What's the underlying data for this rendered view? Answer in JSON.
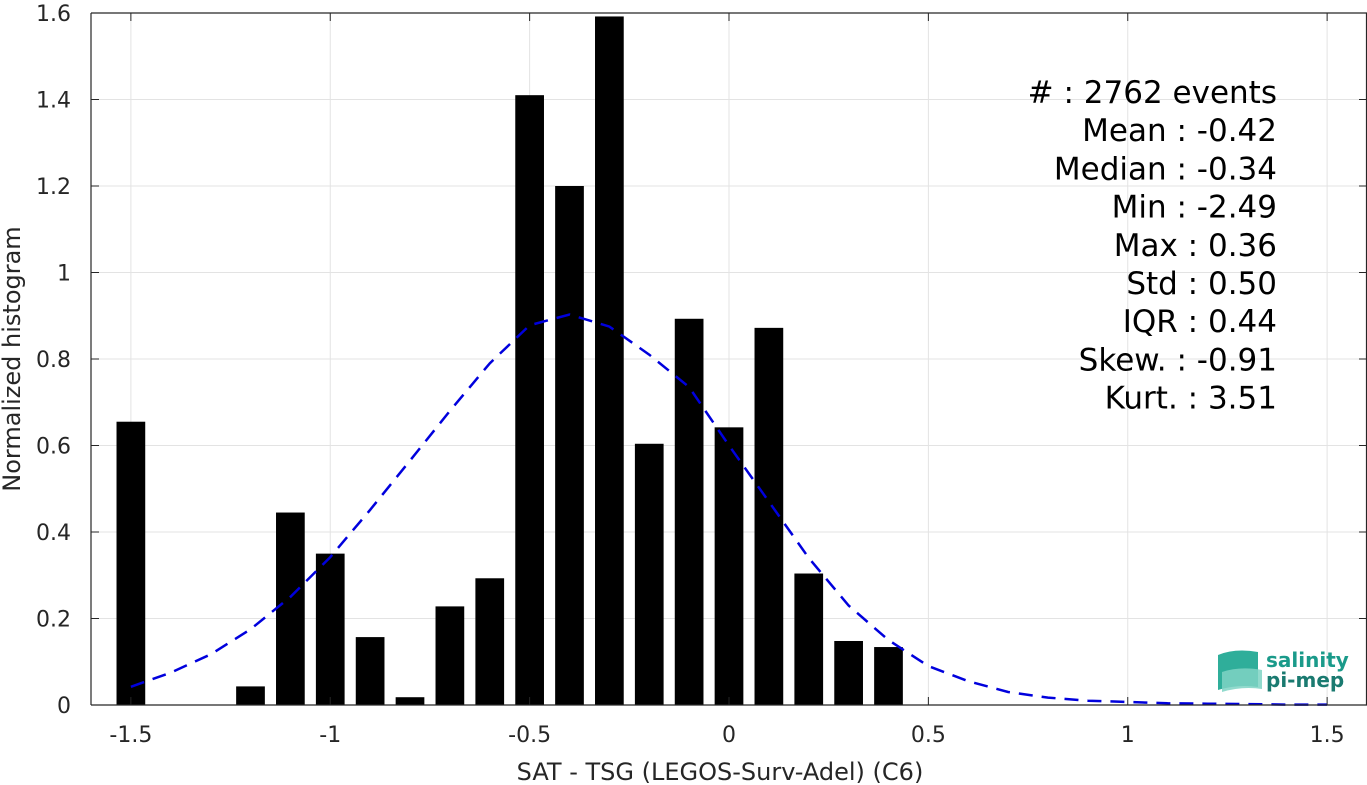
{
  "chart_data": {
    "type": "bar",
    "xlabel": "SAT - TSG (LEGOS-Surv-Adel) (C6)",
    "ylabel": "Normalized histogram",
    "xlim": [
      -1.6,
      1.6
    ],
    "ylim": [
      0,
      1.6
    ],
    "xticks": [
      -1.5,
      -1,
      -0.5,
      0,
      0.5,
      1,
      1.5
    ],
    "xtick_labels": [
      "-1.5",
      "-1",
      "-0.5",
      "0",
      "0.5",
      "1",
      "1.5"
    ],
    "yticks": [
      0,
      0.2,
      0.4,
      0.6,
      0.8,
      1,
      1.2,
      1.4,
      1.6
    ],
    "ytick_labels": [
      "0",
      "0.2",
      "0.4",
      "0.6",
      "0.8",
      "1",
      "1.2",
      "1.4",
      "1.6"
    ],
    "grid": true,
    "bar_color": "#000000",
    "bin_width": 0.1,
    "bins": [
      {
        "x": -1.5,
        "value": 0.655
      },
      {
        "x": -1.4,
        "value": 0
      },
      {
        "x": -1.3,
        "value": 0
      },
      {
        "x": -1.2,
        "value": 0.043
      },
      {
        "x": -1.1,
        "value": 0.445
      },
      {
        "x": -1.0,
        "value": 0.35
      },
      {
        "x": -0.9,
        "value": 0.157
      },
      {
        "x": -0.8,
        "value": 0.018
      },
      {
        "x": -0.7,
        "value": 0.228
      },
      {
        "x": -0.6,
        "value": 0.293
      },
      {
        "x": -0.5,
        "value": 1.41
      },
      {
        "x": -0.4,
        "value": 1.2
      },
      {
        "x": -0.3,
        "value": 1.592
      },
      {
        "x": -0.2,
        "value": 0.604
      },
      {
        "x": -0.1,
        "value": 0.893
      },
      {
        "x": 0.0,
        "value": 0.642
      },
      {
        "x": 0.1,
        "value": 0.872
      },
      {
        "x": 0.2,
        "value": 0.304
      },
      {
        "x": 0.3,
        "value": 0.148
      },
      {
        "x": 0.4,
        "value": 0.134
      }
    ],
    "fit_curve": {
      "style": "dashed",
      "color": "#0000dd",
      "mean": -0.42,
      "std": 0.5,
      "points": [
        [
          -1.5,
          0.042
        ],
        [
          -1.4,
          0.075
        ],
        [
          -1.3,
          0.117
        ],
        [
          -1.2,
          0.175
        ],
        [
          -1.1,
          0.25
        ],
        [
          -1.0,
          0.342
        ],
        [
          -0.9,
          0.451
        ],
        [
          -0.8,
          0.565
        ],
        [
          -0.7,
          0.68
        ],
        [
          -0.6,
          0.79
        ],
        [
          -0.5,
          0.878
        ],
        [
          -0.4,
          0.903
        ],
        [
          -0.3,
          0.875
        ],
        [
          -0.2,
          0.81
        ],
        [
          -0.1,
          0.735
        ],
        [
          0.0,
          0.6
        ],
        [
          0.1,
          0.47
        ],
        [
          0.2,
          0.34
        ],
        [
          0.3,
          0.23
        ],
        [
          0.4,
          0.15
        ],
        [
          0.5,
          0.09
        ],
        [
          0.6,
          0.055
        ],
        [
          0.7,
          0.03
        ],
        [
          0.8,
          0.017
        ],
        [
          0.9,
          0.01
        ],
        [
          1.0,
          0.007
        ],
        [
          1.1,
          0.004
        ],
        [
          1.2,
          0.003
        ],
        [
          1.3,
          0.002
        ],
        [
          1.4,
          0.001
        ],
        [
          1.5,
          0.001
        ]
      ]
    },
    "stats": [
      "#  : 2762 events",
      "Mean : -0.42",
      "Median : -0.34",
      "Min : -2.49",
      "Max : 0.36",
      "Std : 0.50",
      "IQR : 0.44",
      "Skew. : -0.91",
      "Kurt. : 3.51"
    ]
  },
  "logo": {
    "line1": "salinity",
    "line2": "pi-mep",
    "color": "#1a9a8a"
  }
}
